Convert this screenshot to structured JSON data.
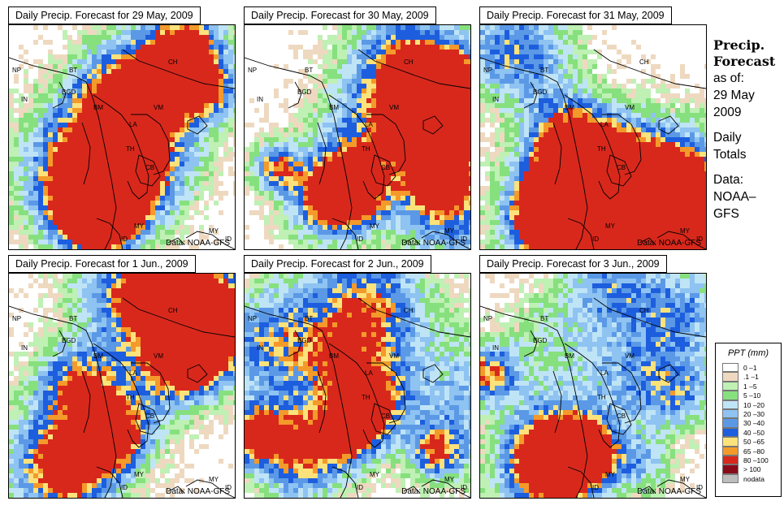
{
  "panels": [
    {
      "title": "Daily Precip. Forecast for  29 May, 2009",
      "seed": 11,
      "credit": "Data: NOAA-GFS"
    },
    {
      "title": "Daily Precip. Forecast for  30 May, 2009",
      "seed": 23,
      "credit": "Data: NOAA-GFS"
    },
    {
      "title": "Daily Precip. Forecast for  31 May, 2009",
      "seed": 37,
      "credit": "Data: NOAA-GFS"
    },
    {
      "title": "Daily Precip. Forecast for  1 Jun., 2009",
      "seed": 41,
      "credit": "Data: NOAA-GFS"
    },
    {
      "title": "Daily Precip. Forecast for  2 Jun., 2009",
      "seed": 53,
      "credit": "Data: NOAA-GFS"
    },
    {
      "title": "Daily Precip. Forecast for  3 Jun., 2009",
      "seed": 67,
      "credit": "Data: NOAA-GFS"
    }
  ],
  "country_labels": [
    "NP",
    "BT",
    "BGD",
    "IN",
    "CH",
    "BM",
    "VM",
    "LA",
    "TH",
    "CB",
    "MY",
    "ID",
    "MY",
    "ID"
  ],
  "sidebar": {
    "title_line1": "Precip.",
    "title_line2": "Forecast",
    "asof_line1": "as of:",
    "asof_line2": "29 May",
    "asof_line3": "2009",
    "type_line1": "Daily",
    "type_line2": "Totals",
    "data_line1": "Data:",
    "data_line2": "NOAA–",
    "data_line3": "GFS"
  },
  "legend": {
    "title": "PPT (mm)",
    "items": [
      {
        "label": "0 –1",
        "color": "#ffffff"
      },
      {
        "label": ".1 –1",
        "color": "#eed9c0"
      },
      {
        "label": "1 –5",
        "color": "#bff0b4"
      },
      {
        "label": "5 –10",
        "color": "#86e07e"
      },
      {
        "label": "10 –20",
        "color": "#bfe4f6"
      },
      {
        "label": "20 –30",
        "color": "#8ec3f2"
      },
      {
        "label": "30 –40",
        "color": "#5b99e6"
      },
      {
        "label": "40 –50",
        "color": "#1d5ede"
      },
      {
        "label": "50 –65",
        "color": "#fce27b"
      },
      {
        "label": "65 –80",
        "color": "#f49a2a"
      },
      {
        "label": "80 –100",
        "color": "#d8281c"
      },
      {
        "label": "> 100",
        "color": "#8a0a1a"
      },
      {
        "label": "nodata",
        "color": "#bdbdbd"
      }
    ]
  }
}
